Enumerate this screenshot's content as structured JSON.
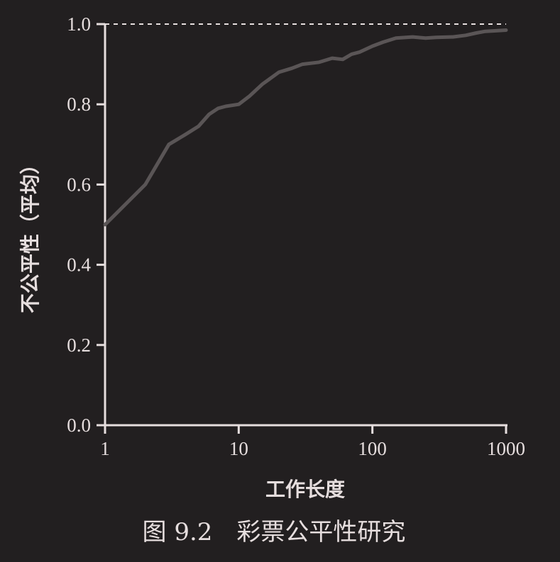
{
  "chart_data": {
    "type": "line",
    "caption": "图 9.2　彩票公平性研究",
    "xlabel": "工作长度",
    "ylabel": "不公平性（平均）",
    "x_scale": "log",
    "xlim": [
      1,
      1000
    ],
    "ylim": [
      0,
      1.0
    ],
    "x_ticks": [
      1,
      10,
      100,
      1000
    ],
    "x_tick_labels": [
      "1",
      "10",
      "100",
      "1000"
    ],
    "y_ticks": [
      0,
      0.2,
      0.4,
      0.6,
      0.8,
      1.0
    ],
    "y_tick_labels": [
      "0.0",
      "0.2",
      "0.4",
      "0.6",
      "0.8",
      "1.0"
    ],
    "reference_line": {
      "y": 1.0,
      "style": "dashed"
    },
    "grid": false,
    "line_color": "#5a5556",
    "axis_color": "#e6dede",
    "series": [
      {
        "x": [
          1,
          2,
          3,
          4,
          5,
          6,
          7,
          8,
          10,
          12,
          15,
          20,
          25,
          30,
          40,
          50,
          60,
          70,
          80,
          100,
          120,
          150,
          200,
          250,
          300,
          400,
          500,
          600,
          700,
          800,
          1000
        ],
        "y": [
          0.5,
          0.6,
          0.7,
          0.725,
          0.745,
          0.775,
          0.79,
          0.795,
          0.8,
          0.82,
          0.85,
          0.88,
          0.89,
          0.9,
          0.905,
          0.915,
          0.912,
          0.925,
          0.93,
          0.945,
          0.955,
          0.965,
          0.968,
          0.965,
          0.967,
          0.968,
          0.972,
          0.978,
          0.982,
          0.983,
          0.985
        ]
      }
    ]
  }
}
